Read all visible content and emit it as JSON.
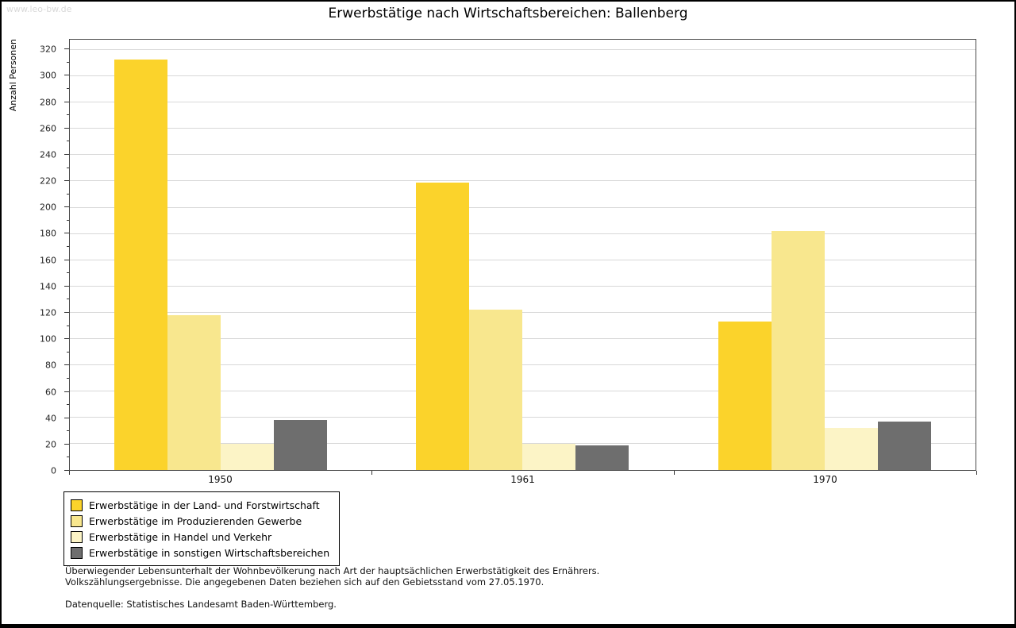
{
  "watermark": "www.leo-bw.de",
  "chart_data": {
    "type": "bar",
    "title": "Erwerbstätige nach Wirtschaftsbereichen: Ballenberg",
    "xlabel": "",
    "ylabel": "Anzahl Personen",
    "categories": [
      "1950",
      "1961",
      "1970"
    ],
    "series": [
      {
        "name": "Erwerbstätige in der Land- und Forstwirtschaft",
        "color": "#fbd32b",
        "values": [
          313,
          219,
          113
        ]
      },
      {
        "name": "Erwerbstätige im Produzierenden Gewerbe",
        "color": "#f8e78e",
        "values": [
          118,
          122,
          182
        ]
      },
      {
        "name": "Erwerbstätige in Handel und Verkehr",
        "color": "#fcf4c6",
        "values": [
          20,
          20,
          32
        ]
      },
      {
        "name": "Erwerbstätige in sonstigen Wirtschaftsbereichen",
        "color": "#6e6e6e",
        "values": [
          38,
          19,
          37
        ]
      }
    ],
    "ylim": [
      0,
      320
    ],
    "ytick_step": 20,
    "grid": true,
    "legend_position": "bottom-left"
  },
  "notes": {
    "line1": "Überwiegender Lebensunterhalt der Wohnbevölkerung nach Art der hauptsächlichen Erwerbstätigkeit des Ernährers.",
    "line2": "Volkszählungsergebnisse. Die angegebenen Daten beziehen sich auf den Gebietsstand vom 27.05.1970.",
    "source": "Datenquelle: Statistisches Landesamt Baden-Württemberg."
  }
}
